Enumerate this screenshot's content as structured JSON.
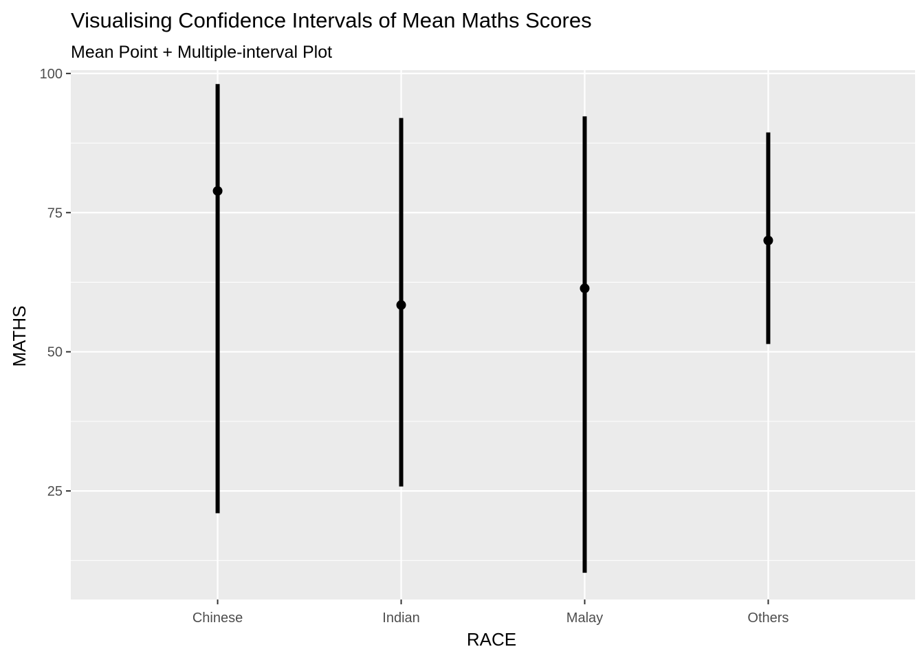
{
  "chart_data": {
    "type": "errorbar",
    "title": "Visualising Confidence Intervals of Mean Maths Scores",
    "subtitle": "Mean Point + Multiple-interval Plot",
    "xlabel": "RACE",
    "ylabel": "MATHS",
    "categories": [
      "Chinese",
      "Indian",
      "Malay",
      "Others"
    ],
    "means": [
      78.9,
      58.4,
      61.4,
      70.0
    ],
    "lower": [
      21.0,
      25.8,
      10.3,
      51.4
    ],
    "upper": [
      98.1,
      92.0,
      92.3,
      89.4
    ],
    "yticks": [
      25,
      50,
      75,
      100
    ],
    "ylim": [
      5.5,
      100.6
    ],
    "grid": true,
    "colors": {
      "panel_background": "#ebebeb",
      "grid_major": "#ffffff",
      "grid_minor": "#f5f5f5",
      "marks": "#000000",
      "tick_text": "#4d4d4d",
      "tick_marks": "#333333"
    }
  }
}
